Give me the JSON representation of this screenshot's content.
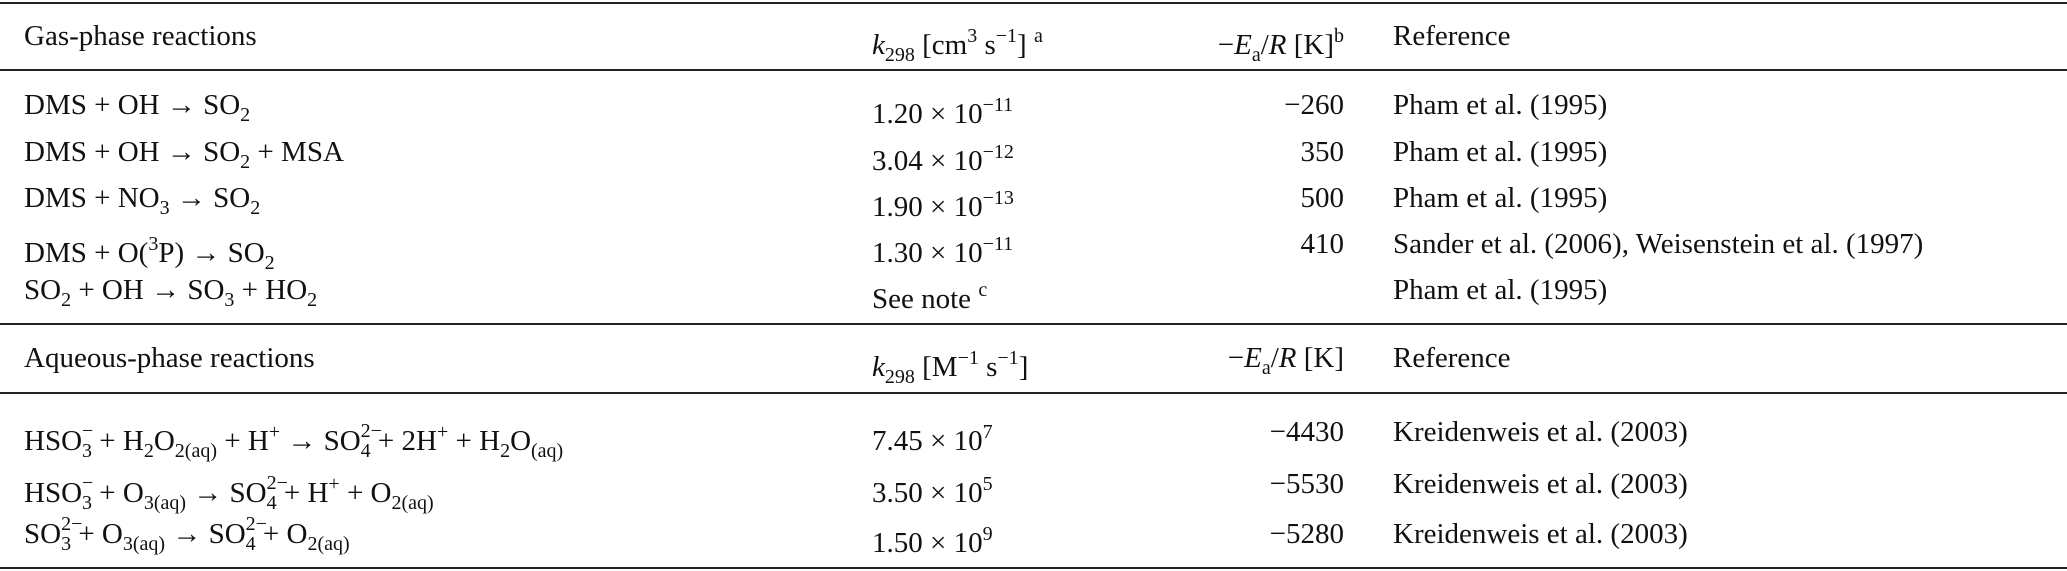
{
  "table": {
    "sections": [
      {
        "header": [
          [
            "Gas-phase reactions"
          ],
          [
            {
              "i": "k"
            },
            {
              "sub": "298"
            },
            " [cm",
            {
              "sup": "3"
            },
            " s",
            {
              "sup": "−1"
            },
            "] ",
            {
              "sup": "a"
            }
          ],
          [
            "−",
            {
              "i": "E"
            },
            {
              "sub": "a"
            },
            "/",
            {
              "i": "R"
            },
            " [K]",
            {
              "sup": "b"
            }
          ],
          [
            "Reference"
          ]
        ],
        "rows": [
          [
            [
              "DMS + OH → SO",
              {
                "sub": "2"
              }
            ],
            [
              "1.20 × 10",
              {
                "sup": "−11"
              }
            ],
            [
              "−260"
            ],
            [
              "Pham et al. (1995)"
            ]
          ],
          [
            [
              "DMS + OH → SO",
              {
                "sub": "2"
              },
              " + MSA"
            ],
            [
              "3.04 × 10",
              {
                "sup": "−12"
              }
            ],
            [
              "350"
            ],
            [
              "Pham et al. (1995)"
            ]
          ],
          [
            [
              "DMS + NO",
              {
                "sub": "3"
              },
              " → SO",
              {
                "sub": "2"
              }
            ],
            [
              "1.90 × 10",
              {
                "sup": "−13"
              }
            ],
            [
              "500"
            ],
            [
              "Pham et al. (1995)"
            ]
          ],
          [
            [
              "DMS + O(",
              {
                "sup": "3"
              },
              "P) → SO",
              {
                "sub": "2"
              }
            ],
            [
              "1.30 × 10",
              {
                "sup": "−11"
              }
            ],
            [
              "410"
            ],
            [
              "Sander et al. (2006), Weisenstein et al. (1997)"
            ]
          ],
          [
            [
              "SO",
              {
                "sub": "2"
              },
              " + OH → SO",
              {
                "sub": "3"
              },
              " + HO",
              {
                "sub": "2"
              }
            ],
            [
              "See note ",
              {
                "sup": "c"
              }
            ],
            null,
            [
              "Pham et al. (1995)"
            ]
          ]
        ]
      },
      {
        "header": [
          [
            "Aqueous-phase reactions"
          ],
          [
            {
              "i": "k"
            },
            {
              "sub": "298"
            },
            " [M",
            {
              "sup": "−1"
            },
            " s",
            {
              "sup": "−1"
            },
            "]"
          ],
          [
            "−",
            {
              "i": "E"
            },
            {
              "sub": "a"
            },
            "/",
            {
              "i": "R"
            },
            " [K]"
          ],
          [
            "Reference"
          ]
        ],
        "rows": [
          [
            [
              "HSO",
              {
                "sub": "3",
                "sup": "−"
              },
              " + H",
              {
                "sub": "2"
              },
              "O",
              {
                "sub": "2(aq)"
              },
              " + H",
              {
                "sup": "+"
              },
              " → SO",
              {
                "sub": "4",
                "sup": "2−"
              },
              " + 2H",
              {
                "sup": "+"
              },
              " + H",
              {
                "sub": "2"
              },
              "O",
              {
                "sub": "(aq)"
              }
            ],
            [
              "7.45 × 10",
              {
                "sup": "7"
              }
            ],
            [
              "−4430"
            ],
            [
              "Kreidenweis et al. (2003)"
            ]
          ],
          [
            [
              "HSO",
              {
                "sub": "3",
                "sup": "−"
              },
              " + O",
              {
                "sub": "3(aq)"
              },
              " → SO",
              {
                "sub": "4",
                "sup": "2−"
              },
              " + H",
              {
                "sup": "+"
              },
              " + O",
              {
                "sub": "2(aq)"
              }
            ],
            [
              "3.50 × 10",
              {
                "sup": "5"
              }
            ],
            [
              "−5530"
            ],
            [
              "Kreidenweis et al. (2003)"
            ]
          ],
          [
            [
              "SO",
              {
                "sub": "3",
                "sup": "2−"
              },
              " + O",
              {
                "sub": "3(aq)"
              },
              " → SO",
              {
                "sub": "4",
                "sup": "2−"
              },
              " + O",
              {
                "sub": "2(aq)"
              }
            ],
            [
              "1.50 × 10",
              {
                "sup": "9"
              }
            ],
            [
              "−5280"
            ],
            [
              "Kreidenweis et al. (2003)"
            ]
          ]
        ]
      }
    ]
  }
}
